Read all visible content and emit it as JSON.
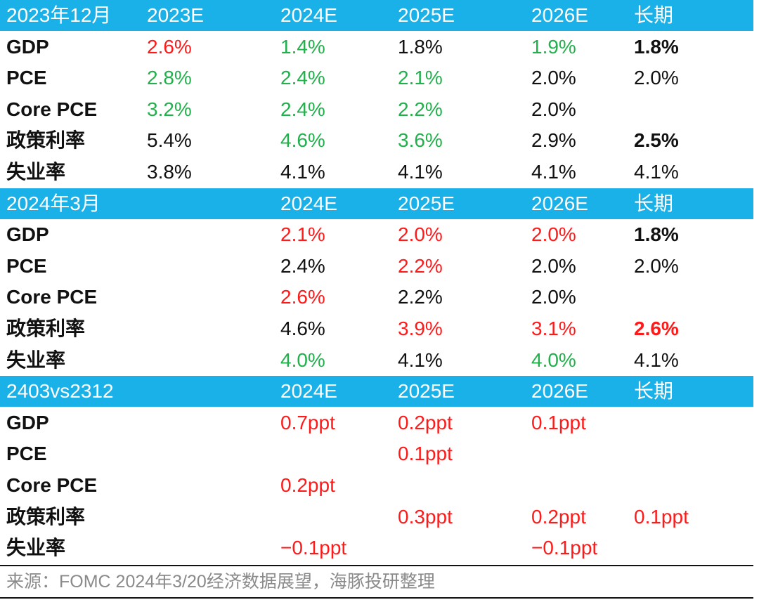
{
  "colors": {
    "header_bg": "#1ab0e8",
    "header_text": "#ffffff",
    "positive": "#ff1a1a",
    "negative": "#22b04c",
    "text": "#111111",
    "source_text": "#8a8a8a"
  },
  "sections": [
    {
      "header": [
        "2023年12月",
        "2023E",
        "2024E",
        "2025E",
        "2026E",
        "长期"
      ],
      "rows": [
        {
          "label": "GDP",
          "cells": [
            {
              "text": "2.6%",
              "color": "red"
            },
            {
              "text": "1.4%",
              "color": "green"
            },
            {
              "text": "1.8%"
            },
            {
              "text": "1.9%",
              "color": "green"
            },
            {
              "text": "1.8%",
              "bold": true
            }
          ]
        },
        {
          "label": "PCE",
          "cells": [
            {
              "text": "2.8%",
              "color": "green"
            },
            {
              "text": "2.4%",
              "color": "green"
            },
            {
              "text": "2.1%",
              "color": "green"
            },
            {
              "text": "2.0%"
            },
            {
              "text": "2.0%"
            }
          ]
        },
        {
          "label": "Core PCE",
          "cells": [
            {
              "text": "3.2%",
              "color": "green"
            },
            {
              "text": "2.4%",
              "color": "green"
            },
            {
              "text": "2.2%",
              "color": "green"
            },
            {
              "text": "2.0%"
            },
            {
              "text": ""
            }
          ]
        },
        {
          "label": "政策利率",
          "cells": [
            {
              "text": "5.4%"
            },
            {
              "text": "4.6%",
              "color": "green"
            },
            {
              "text": "3.6%",
              "color": "green"
            },
            {
              "text": "2.9%"
            },
            {
              "text": "2.5%",
              "bold": true
            }
          ]
        },
        {
          "label": "失业率",
          "cells": [
            {
              "text": "3.8%"
            },
            {
              "text": "4.1%"
            },
            {
              "text": "4.1%"
            },
            {
              "text": "4.1%"
            },
            {
              "text": "4.1%"
            }
          ]
        }
      ]
    },
    {
      "header": [
        "2024年3月",
        "",
        "2024E",
        "2025E",
        "2026E",
        "长期"
      ],
      "rows": [
        {
          "label": "GDP",
          "cells": [
            {
              "text": ""
            },
            {
              "text": "2.1%",
              "color": "red"
            },
            {
              "text": "2.0%",
              "color": "red"
            },
            {
              "text": "2.0%",
              "color": "red"
            },
            {
              "text": "1.8%",
              "bold": true
            }
          ]
        },
        {
          "label": "PCE",
          "cells": [
            {
              "text": ""
            },
            {
              "text": "2.4%"
            },
            {
              "text": "2.2%",
              "color": "red"
            },
            {
              "text": "2.0%"
            },
            {
              "text": "2.0%"
            }
          ]
        },
        {
          "label": "Core PCE",
          "cells": [
            {
              "text": ""
            },
            {
              "text": "2.6%",
              "color": "red"
            },
            {
              "text": "2.2%"
            },
            {
              "text": "2.0%"
            },
            {
              "text": ""
            }
          ]
        },
        {
          "label": "政策利率",
          "cells": [
            {
              "text": ""
            },
            {
              "text": "4.6%"
            },
            {
              "text": "3.9%",
              "color": "red"
            },
            {
              "text": "3.1%",
              "color": "red"
            },
            {
              "text": "2.6%",
              "color": "red",
              "bold": true
            }
          ]
        },
        {
          "label": "失业率",
          "cells": [
            {
              "text": ""
            },
            {
              "text": "4.0%",
              "color": "green"
            },
            {
              "text": "4.1%"
            },
            {
              "text": "4.0%",
              "color": "green"
            },
            {
              "text": "4.1%"
            }
          ]
        }
      ]
    },
    {
      "header": [
        "2403vs2312",
        "",
        "2024E",
        "2025E",
        "2026E",
        "长期"
      ],
      "rows": [
        {
          "label": "GDP",
          "cells": [
            {
              "text": ""
            },
            {
              "text": "0.7ppt",
              "color": "red"
            },
            {
              "text": "0.2ppt",
              "color": "red"
            },
            {
              "text": "0.1ppt",
              "color": "red"
            },
            {
              "text": ""
            }
          ]
        },
        {
          "label": "PCE",
          "cells": [
            {
              "text": ""
            },
            {
              "text": ""
            },
            {
              "text": "0.1ppt",
              "color": "red"
            },
            {
              "text": ""
            },
            {
              "text": ""
            }
          ]
        },
        {
          "label": "Core PCE",
          "cells": [
            {
              "text": ""
            },
            {
              "text": "0.2ppt",
              "color": "red"
            },
            {
              "text": ""
            },
            {
              "text": ""
            },
            {
              "text": ""
            }
          ]
        },
        {
          "label": "政策利率",
          "cells": [
            {
              "text": ""
            },
            {
              "text": ""
            },
            {
              "text": "0.3ppt",
              "color": "red"
            },
            {
              "text": "0.2ppt",
              "color": "red"
            },
            {
              "text": "0.1ppt",
              "color": "red"
            }
          ]
        },
        {
          "label": "失业率",
          "cells": [
            {
              "text": ""
            },
            {
              "text": "−0.1ppt",
              "color": "red"
            },
            {
              "text": ""
            },
            {
              "text": "−0.1ppt",
              "color": "red"
            },
            {
              "text": ""
            }
          ]
        }
      ]
    }
  ],
  "source": "来源：FOMC 2024年3/20经济数据展望，海豚投研整理"
}
